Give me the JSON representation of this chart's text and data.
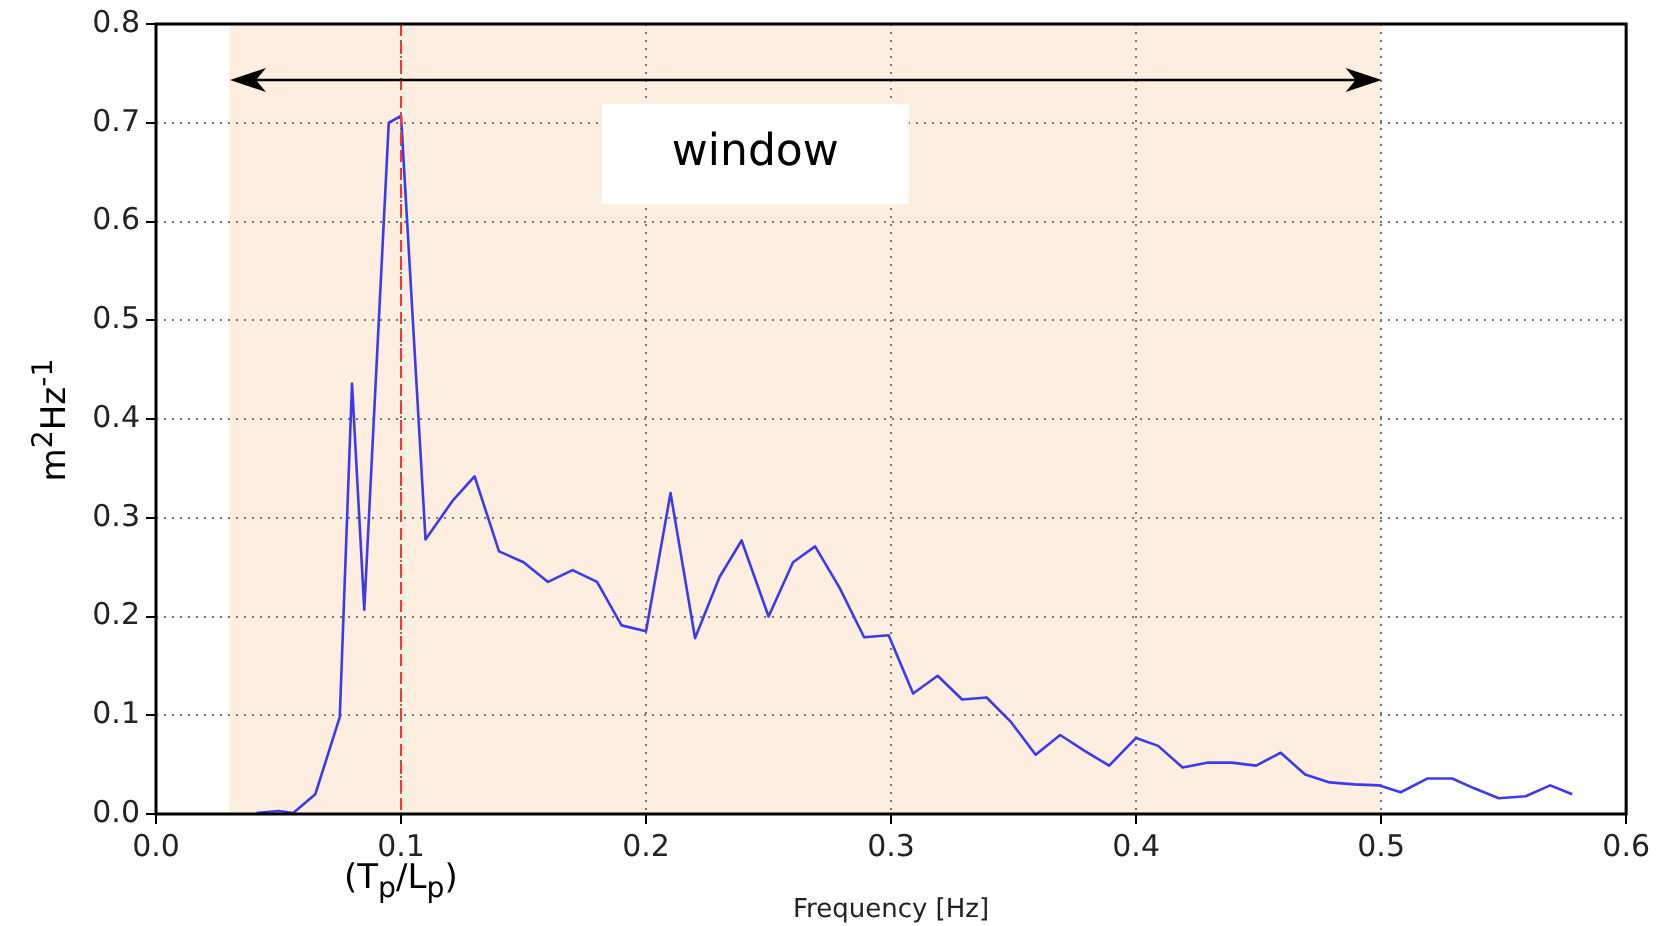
{
  "chart_data": {
    "type": "line",
    "xlabel": "Frequency [Hz]",
    "ylabel": "m$^{2}$Hz$^{-1}$",
    "x": [
      0.041,
      0.05,
      0.056,
      0.065,
      0.075,
      0.08,
      0.085,
      0.095,
      0.1,
      0.11,
      0.121,
      0.13,
      0.14,
      0.15,
      0.16,
      0.17,
      0.18,
      0.19,
      0.2,
      0.21,
      0.22,
      0.23,
      0.239,
      0.25,
      0.26,
      0.269,
      0.279,
      0.289,
      0.299,
      0.309,
      0.319,
      0.329,
      0.339,
      0.349,
      0.359,
      0.369,
      0.379,
      0.389,
      0.4,
      0.409,
      0.419,
      0.429,
      0.439,
      0.449,
      0.459,
      0.469,
      0.479,
      0.489,
      0.499,
      0.508,
      0.519,
      0.529,
      0.538,
      0.548,
      0.559,
      0.569,
      0.578
    ],
    "series": [
      {
        "color": "#3a3aee",
        "values": [
          0.001,
          0.003,
          0.001,
          0.02,
          0.098,
          0.436,
          0.207,
          0.7,
          0.707,
          0.278,
          0.317,
          0.342,
          0.266,
          0.255,
          0.235,
          0.247,
          0.235,
          0.191,
          0.185,
          0.325,
          0.178,
          0.24,
          0.277,
          0.2,
          0.255,
          0.271,
          0.229,
          0.179,
          0.181,
          0.122,
          0.14,
          0.116,
          0.118,
          0.093,
          0.06,
          0.08,
          0.064,
          0.049,
          0.077,
          0.069,
          0.047,
          0.052,
          0.052,
          0.049,
          0.062,
          0.04,
          0.032,
          0.03,
          0.029,
          0.022,
          0.036,
          0.036,
          0.026,
          0.016,
          0.018,
          0.029,
          0.02
        ]
      }
    ],
    "xlim": [
      0,
      0.6
    ],
    "ylim": [
      0,
      0.8
    ],
    "xticks": [
      {
        "value": 0,
        "label": "0.0"
      },
      0.1,
      0.2,
      0.3,
      0.4,
      0.5,
      0.6
    ],
    "yticks": [
      {
        "value": 0,
        "label": "0.0"
      },
      0.1,
      0.2,
      0.3,
      0.4,
      0.5,
      0.6,
      0.7,
      0.8
    ],
    "ref_lines": [
      {
        "axis": "x",
        "value": 0.1,
        "label": "(T$_{p}$/L$_{p}$)",
        "color": "#ff3030",
        "line_style": "dashed"
      }
    ],
    "bands": [
      {
        "axis": "x",
        "from": 0.03,
        "to": 0.5,
        "label": "window",
        "color": "#fdeee0"
      }
    ],
    "grid": true,
    "legend": false,
    "marker": "none",
    "line_style": "solid"
  }
}
